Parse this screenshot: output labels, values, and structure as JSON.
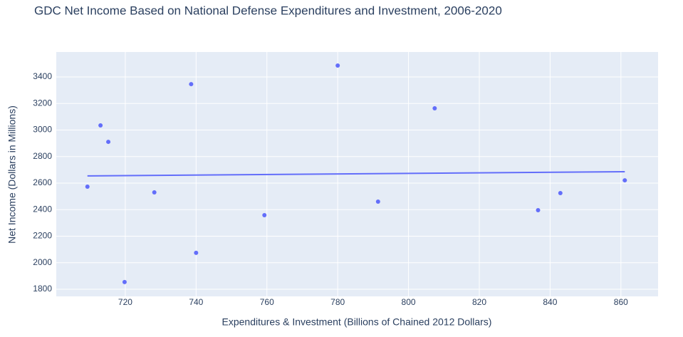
{
  "chart_data": {
    "type": "scatter",
    "title": "GDC Net Income Based on National Defense Expenditures and Investment, 2006-2020",
    "x_label": "Expenditures & Investment (Billions of Chained 2012 Dollars)",
    "y_label": "Net Income (Dollars in Millions)",
    "series": [
      {
        "color": "#636efa",
        "x": [
          709.3,
          713,
          715.2,
          719.8,
          728.2,
          738.6,
          740,
          759.3,
          780,
          791.4,
          807.4,
          836.6,
          842.9,
          861.1
        ],
        "values": [
          2573,
          3035,
          2911,
          1854,
          2530,
          3346,
          2074,
          2358,
          3486,
          2460,
          3164,
          2396,
          2525,
          2621
        ]
      }
    ],
    "trendline": {
      "color": "#636efa",
      "x": [
        709.3,
        861.1
      ],
      "values": [
        2654,
        2686
      ]
    },
    "xlim": [
      700.5,
      870.5
    ],
    "xticks": [
      720,
      740,
      760,
      780,
      800,
      820,
      840,
      860
    ],
    "ylim": [
      1746,
      3588
    ],
    "yticks": [
      1800,
      2000,
      2200,
      2400,
      2600,
      2800,
      3000,
      3200,
      3400
    ],
    "grid": true
  }
}
